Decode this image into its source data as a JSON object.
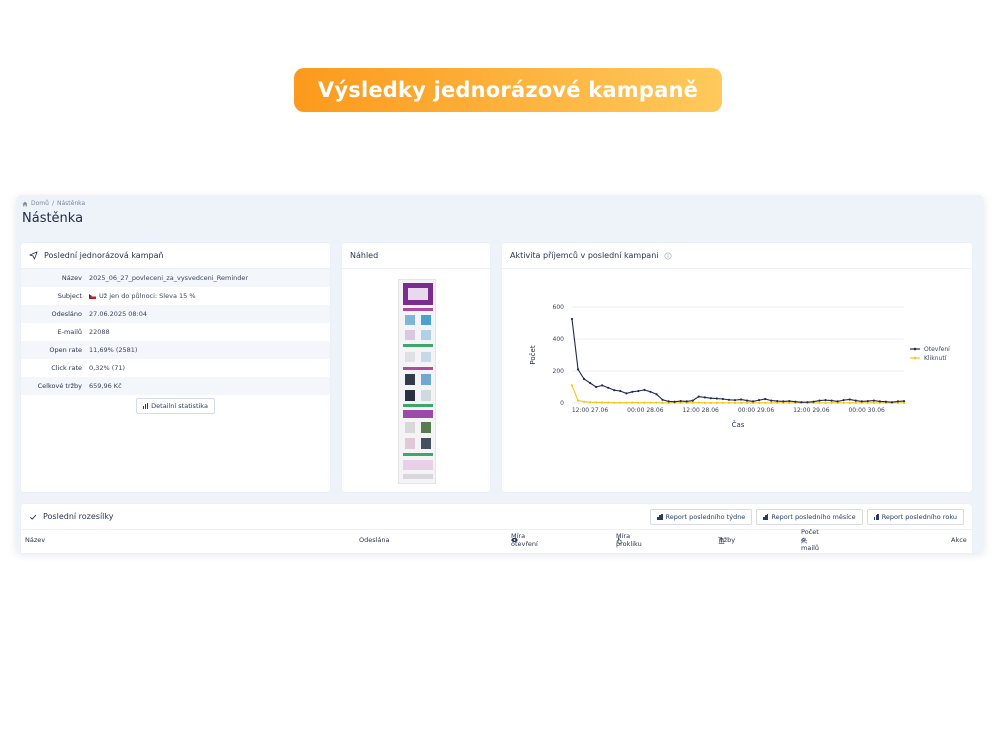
{
  "banner": {
    "title": "Výsledky jednorázové kampaně"
  },
  "breadcrumb": {
    "home": "Domů",
    "separator": "/",
    "current": "Nástěnka"
  },
  "page_title": "Nástěnka",
  "last_campaign": {
    "title": "Poslední jednorázová kampaň",
    "rows": [
      {
        "label": "Název",
        "value": "2025_06_27_povleceni_za_vysvedceni_Reminder"
      },
      {
        "label": "Subject",
        "value": "Už jen do půlnoci: Sleva 15 %"
      },
      {
        "label": "Odesláno",
        "value": "27.06.2025 08:04"
      },
      {
        "label": "E-mailů",
        "value": "22088"
      },
      {
        "label": "Open rate",
        "value": "11,69% (2581)"
      },
      {
        "label": "Click rate",
        "value": "0,32% (71)"
      },
      {
        "label": "Celkové tržby",
        "value": "659,96 Kč"
      }
    ],
    "detail_button": "Detailní statistika"
  },
  "preview": {
    "title": "Náhled"
  },
  "activity": {
    "title": "Aktivita příjemců v poslední kampani"
  },
  "chart_data": {
    "type": "line",
    "xlabel": "Čas",
    "ylabel": "Počet",
    "ylim": [
      0,
      600
    ],
    "yticks": [
      0,
      200,
      400,
      600
    ],
    "x_ticks": [
      "12:00 27.06",
      "00:00 28.06",
      "12:00 28.06",
      "00:00 29.06",
      "12:00 29.06",
      "00:00 30.06"
    ],
    "legend_position": "right",
    "series": [
      {
        "name": "Otevření",
        "color": "#1f2a55",
        "values": [
          525,
          210,
          150,
          125,
          100,
          110,
          95,
          80,
          75,
          60,
          70,
          75,
          82,
          70,
          55,
          20,
          10,
          8,
          12,
          10,
          15,
          40,
          35,
          30,
          28,
          25,
          20,
          18,
          22,
          15,
          10,
          18,
          25,
          15,
          12,
          10,
          12,
          8,
          5,
          5,
          8,
          15,
          18,
          15,
          10,
          18,
          22,
          15,
          10,
          12,
          15,
          10,
          8,
          5,
          10,
          12
        ]
      },
      {
        "name": "Kliknutí",
        "color": "#f5c518",
        "values": [
          110,
          15,
          8,
          5,
          4,
          3,
          3,
          2,
          2,
          2,
          3,
          2,
          2,
          2,
          2,
          1,
          1,
          1,
          1,
          1,
          2,
          2,
          1,
          1,
          1,
          1,
          1,
          1,
          1,
          1,
          1,
          1,
          1,
          1,
          1,
          1,
          1,
          1,
          1,
          1,
          1,
          1,
          1,
          1,
          1,
          1,
          1,
          1,
          1,
          1,
          1,
          1,
          1,
          1,
          1,
          1
        ]
      }
    ]
  },
  "sendouts": {
    "title": "Poslední rozesílky",
    "buttons": [
      "Report posledního týdne",
      "Report posledního měsíce",
      "Report posledního roku"
    ],
    "columns": [
      "Název",
      "Odeslána",
      "Míra otevření",
      "Míra prokliku",
      "Tržby",
      "Počet e-mailů",
      "Akce"
    ]
  }
}
